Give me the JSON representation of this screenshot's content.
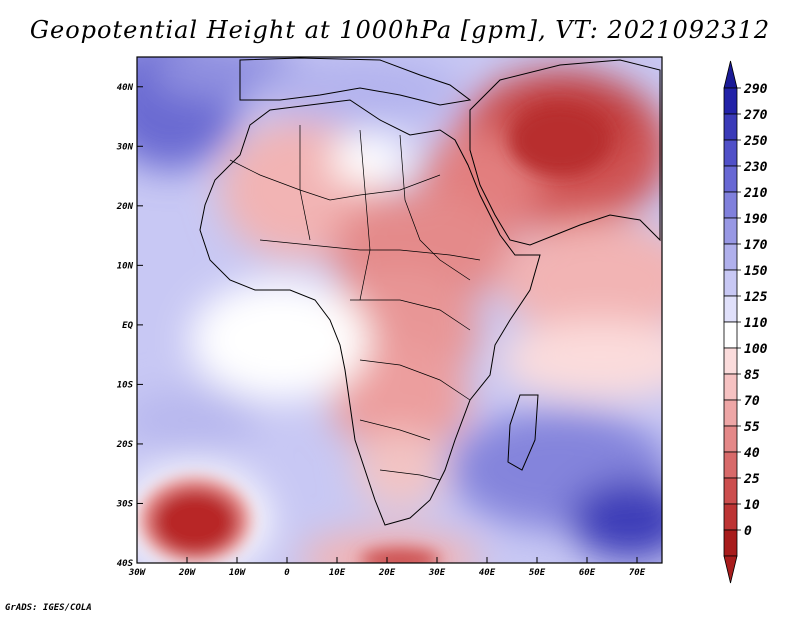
{
  "title": "Geopotential Height at 1000hPa [gpm], VT: 2021092312",
  "credit": "GrADS: IGES/COLA",
  "map": {
    "variable": "Geopotential Height",
    "level": "1000hPa",
    "units": "gpm",
    "valid_time": "2021092312",
    "lon_range": [
      -30,
      75
    ],
    "lat_range": [
      -40,
      45
    ],
    "lat_labels": [
      "40N",
      "30N",
      "20N",
      "10N",
      "EQ",
      "10S",
      "20S",
      "30S",
      "40S"
    ],
    "lat_values": [
      40,
      30,
      20,
      10,
      0,
      -10,
      -20,
      -30,
      -40
    ],
    "lon_labels": [
      "30W",
      "20W",
      "10W",
      "0",
      "10E",
      "20E",
      "30E",
      "40E",
      "50E",
      "60E",
      "70E"
    ],
    "lon_values": [
      -30,
      -20,
      -10,
      0,
      10,
      20,
      30,
      40,
      50,
      60,
      70
    ]
  },
  "colorbar": {
    "labels": [
      "290",
      "270",
      "250",
      "230",
      "210",
      "190",
      "170",
      "150",
      "125",
      "110",
      "100",
      "85",
      "70",
      "55",
      "40",
      "25",
      "10",
      "0"
    ],
    "colors": [
      "#2222a8",
      "#3a3ab8",
      "#5050c8",
      "#6868d4",
      "#8080dc",
      "#9898e4",
      "#b0b0ec",
      "#c8c8f4",
      "#e0e0fa",
      "#ffffff",
      "#fbdcdc",
      "#f6c2c2",
      "#eea6a6",
      "#e48888",
      "#d86a6a",
      "#cc4e4e",
      "#bd3434",
      "#a81c1c"
    ],
    "top_arrow_color": "#1a1a96",
    "bottom_arrow_color": "#a81c1c"
  }
}
